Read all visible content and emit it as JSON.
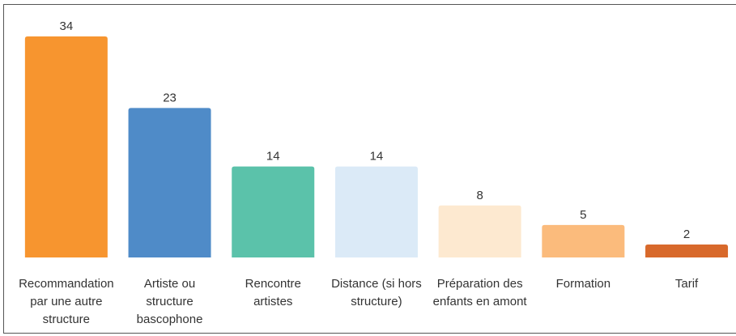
{
  "chart_data": {
    "type": "bar",
    "categories": [
      "Recommandation par une autre structure",
      "Artiste ou structure bascophone",
      "Rencontre artistes",
      "Distance (si hors structure)",
      "Préparation des enfants en amont",
      "Formation",
      "Tarif"
    ],
    "values": [
      34,
      23,
      14,
      14,
      8,
      5,
      2
    ],
    "colors": [
      "#f7952f",
      "#4f8bc8",
      "#5bc2aa",
      "#dbeaf7",
      "#fde9d0",
      "#fbbb7c",
      "#d8692b"
    ]
  }
}
